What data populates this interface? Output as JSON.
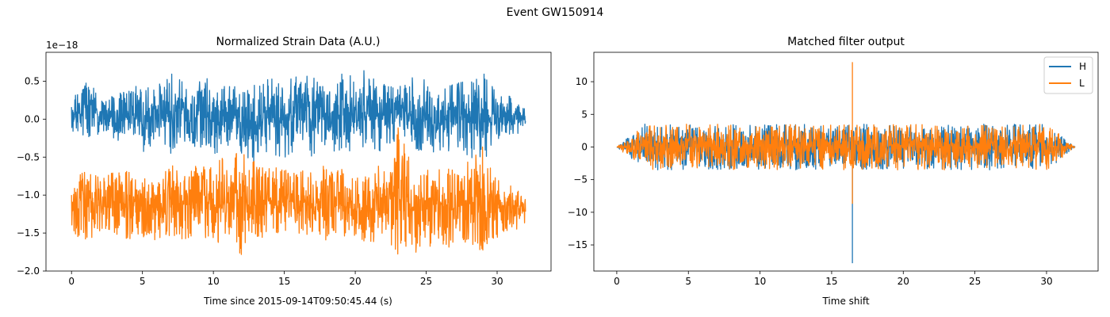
{
  "figure": {
    "suptitle": "Event GW150914"
  },
  "colors": {
    "H": "#1f77b4",
    "L": "#ff7f0e",
    "axes": "#000000",
    "background": "#ffffff"
  },
  "chart_data": [
    {
      "type": "line",
      "title": "Normalized Strain Data (A.U.)",
      "xlabel": "Time since 2015-09-14T09:50:45.44 (s)",
      "ylabel": "",
      "offset_text": "1e−18",
      "xlim": [
        -1.8,
        33.8
      ],
      "ylim": [
        -2.0,
        0.88
      ],
      "xticks": [
        0,
        5,
        10,
        15,
        20,
        25,
        30
      ],
      "xtick_labels": [
        "0",
        "5",
        "10",
        "15",
        "20",
        "25",
        "30"
      ],
      "yticks": [
        0.5,
        0.0,
        -0.5,
        -1.0,
        -1.5,
        -2.0
      ],
      "ytick_labels": [
        "0.5",
        "0.0",
        "−0.5",
        "−1.0",
        "−1.5",
        "−2.0"
      ],
      "grid": false,
      "legend": "none",
      "series": [
        {
          "key": "H",
          "color": "#1f77b4",
          "x_range": [
            0,
            32
          ],
          "band_x": [
            0,
            1,
            2,
            3,
            4,
            5,
            6,
            7,
            8,
            9,
            10,
            11,
            12,
            13,
            14,
            15,
            16,
            17,
            18,
            19,
            20,
            21,
            22,
            23,
            24,
            25,
            26,
            27,
            28,
            29,
            30,
            31,
            32
          ],
          "band_max": [
            0.3,
            0.55,
            0.3,
            0.3,
            0.5,
            0.38,
            0.5,
            0.72,
            0.45,
            0.58,
            0.55,
            0.45,
            0.52,
            0.45,
            0.56,
            0.47,
            0.68,
            0.55,
            0.5,
            0.63,
            0.58,
            0.7,
            0.47,
            0.42,
            0.6,
            0.52,
            0.48,
            0.48,
            0.55,
            0.65,
            0.4,
            0.3,
            0.2
          ],
          "band_min": [
            -0.15,
            -0.25,
            -0.2,
            -0.35,
            -0.2,
            -0.45,
            -0.35,
            -0.45,
            -0.3,
            -0.4,
            -0.5,
            -0.35,
            -0.5,
            -0.6,
            -0.45,
            -0.55,
            -0.4,
            -0.5,
            -0.45,
            -0.5,
            -0.45,
            -0.5,
            -0.4,
            -0.3,
            -0.45,
            -0.5,
            -0.55,
            -0.4,
            -0.5,
            -0.6,
            -0.3,
            -0.25,
            -0.15
          ]
        },
        {
          "key": "L",
          "color": "#ff7f0e",
          "x_range": [
            0,
            32
          ],
          "band_x": [
            0,
            1,
            2,
            3,
            4,
            5,
            6,
            7,
            8,
            9,
            10,
            11,
            12,
            13,
            14,
            15,
            16,
            17,
            18,
            19,
            20,
            21,
            22,
            23,
            24,
            25,
            26,
            27,
            28,
            29,
            30,
            31,
            32
          ],
          "band_max": [
            -0.7,
            -0.55,
            -0.75,
            -0.7,
            -0.65,
            -0.75,
            -0.8,
            -0.6,
            -0.65,
            -0.6,
            -0.6,
            -0.45,
            -0.4,
            -0.55,
            -0.6,
            -0.65,
            -0.7,
            -0.6,
            -0.55,
            -0.65,
            -0.8,
            -0.6,
            -0.55,
            -0.05,
            -0.6,
            -0.6,
            -0.65,
            -0.6,
            -0.55,
            -0.35,
            -0.75,
            -0.85,
            -0.95
          ],
          "band_min": [
            -1.55,
            -1.6,
            -1.55,
            -1.5,
            -1.6,
            -1.55,
            -1.6,
            -1.55,
            -1.6,
            -1.5,
            -1.65,
            -1.65,
            -1.8,
            -1.6,
            -1.55,
            -1.6,
            -1.6,
            -1.55,
            -1.6,
            -1.55,
            -1.6,
            -1.65,
            -1.55,
            -1.85,
            -1.8,
            -1.7,
            -1.7,
            -1.7,
            -1.65,
            -1.75,
            -1.6,
            -1.5,
            -1.4
          ]
        }
      ]
    },
    {
      "type": "line",
      "title": "Matched filter output",
      "xlabel": "Time shift",
      "ylabel": "",
      "xlim": [
        -1.6,
        33.6
      ],
      "ylim": [
        -19.0,
        14.5
      ],
      "xticks": [
        0,
        5,
        10,
        15,
        20,
        25,
        30
      ],
      "xtick_labels": [
        "0",
        "5",
        "10",
        "15",
        "20",
        "25",
        "30"
      ],
      "yticks": [
        10,
        5,
        0,
        -5,
        -10,
        -15
      ],
      "ytick_labels": [
        "10",
        "5",
        "0",
        "−5",
        "−10",
        "−15"
      ],
      "grid": false,
      "legend": "top-right",
      "legend_entries": [
        "H",
        "L"
      ],
      "series": [
        {
          "key": "H",
          "color": "#1f77b4",
          "x_range": [
            0,
            32
          ],
          "envelope_amplitude": 3.5,
          "peak": {
            "x": 16.45,
            "max": 0.5,
            "min": -17.8
          }
        },
        {
          "key": "L",
          "color": "#ff7f0e",
          "x_range": [
            0,
            32
          ],
          "envelope_amplitude": 3.5,
          "peak": {
            "x": 16.45,
            "max": 13.0,
            "min": -8.7
          }
        }
      ]
    }
  ]
}
